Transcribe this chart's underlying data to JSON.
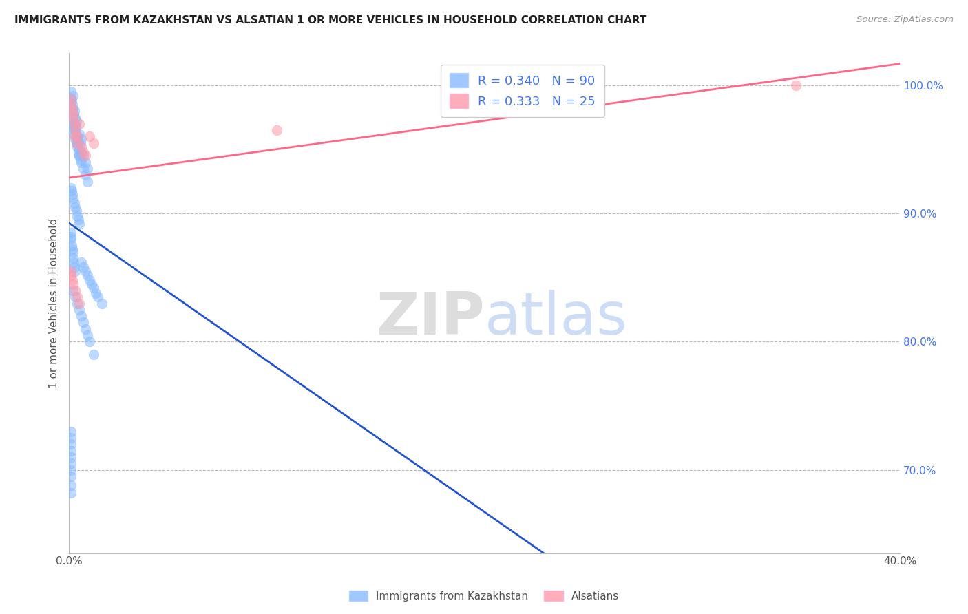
{
  "title": "IMMIGRANTS FROM KAZAKHSTAN VS ALSATIAN 1 OR MORE VEHICLES IN HOUSEHOLD CORRELATION CHART",
  "source": "Source: ZipAtlas.com",
  "ylabel": "1 or more Vehicles in Household",
  "watermark_zip": "ZIP",
  "watermark_atlas": "atlas",
  "legend1_label": "Immigrants from Kazakhstan",
  "legend2_label": "Alsatians",
  "R1": 0.34,
  "N1": 90,
  "R2": 0.333,
  "N2": 25,
  "xlim": [
    0.0,
    0.4
  ],
  "ylim": [
    0.635,
    1.025
  ],
  "color_blue": "#88BBFF",
  "color_pink": "#FF99AA",
  "trend_blue": "#2255CC",
  "trend_pink": "#FF6688",
  "grid_color": "#BBBBBB",
  "axis_color": "#BBBBBB",
  "right_tick_color": "#4477EE",
  "scatter_alpha": 0.55,
  "scatter_size": 110,
  "kaz_x": [
    0.0008,
    0.001,
    0.0012,
    0.0015,
    0.0018,
    0.002,
    0.002,
    0.0022,
    0.0025,
    0.003,
    0.003,
    0.003,
    0.0032,
    0.0035,
    0.004,
    0.004,
    0.0042,
    0.005,
    0.005,
    0.005,
    0.0055,
    0.006,
    0.006,
    0.006,
    0.007,
    0.007,
    0.008,
    0.008,
    0.009,
    0.009,
    0.001,
    0.0015,
    0.002,
    0.0025,
    0.003,
    0.0035,
    0.004,
    0.0045,
    0.005,
    0.0055,
    0.001,
    0.0012,
    0.0015,
    0.002,
    0.0025,
    0.003,
    0.0035,
    0.004,
    0.0045,
    0.005,
    0.001,
    0.0008,
    0.001,
    0.0012,
    0.0015,
    0.0018,
    0.002,
    0.0022,
    0.0025,
    0.003,
    0.006,
    0.007,
    0.008,
    0.009,
    0.01,
    0.011,
    0.012,
    0.013,
    0.014,
    0.016,
    0.001,
    0.001,
    0.001,
    0.001,
    0.001,
    0.001,
    0.001,
    0.001,
    0.001,
    0.001,
    0.002,
    0.003,
    0.004,
    0.005,
    0.006,
    0.007,
    0.008,
    0.009,
    0.01,
    0.012
  ],
  "kaz_y": [
    0.99,
    0.995,
    0.988,
    0.985,
    0.992,
    0.982,
    0.975,
    0.978,
    0.98,
    0.97,
    0.975,
    0.965,
    0.968,
    0.972,
    0.96,
    0.955,
    0.958,
    0.95,
    0.945,
    0.962,
    0.955,
    0.948,
    0.94,
    0.958,
    0.935,
    0.945,
    0.93,
    0.94,
    0.925,
    0.935,
    0.97,
    0.968,
    0.965,
    0.962,
    0.958,
    0.955,
    0.952,
    0.948,
    0.945,
    0.942,
    0.92,
    0.918,
    0.915,
    0.912,
    0.908,
    0.905,
    0.902,
    0.898,
    0.895,
    0.892,
    0.885,
    0.882,
    0.88,
    0.875,
    0.872,
    0.87,
    0.865,
    0.862,
    0.858,
    0.855,
    0.862,
    0.858,
    0.855,
    0.852,
    0.848,
    0.845,
    0.842,
    0.838,
    0.835,
    0.83,
    0.7,
    0.695,
    0.688,
    0.705,
    0.71,
    0.682,
    0.72,
    0.715,
    0.725,
    0.73,
    0.84,
    0.835,
    0.83,
    0.825,
    0.82,
    0.815,
    0.81,
    0.805,
    0.8,
    0.79
  ],
  "als_x": [
    0.0008,
    0.001,
    0.0015,
    0.002,
    0.002,
    0.0025,
    0.003,
    0.003,
    0.004,
    0.004,
    0.005,
    0.006,
    0.007,
    0.008,
    0.01,
    0.012,
    0.0008,
    0.001,
    0.0015,
    0.002,
    0.003,
    0.004,
    0.005,
    0.1,
    0.35
  ],
  "als_y": [
    0.99,
    0.985,
    0.982,
    0.978,
    0.975,
    0.97,
    0.965,
    0.96,
    0.955,
    0.96,
    0.97,
    0.952,
    0.948,
    0.945,
    0.96,
    0.955,
    0.855,
    0.852,
    0.848,
    0.845,
    0.84,
    0.835,
    0.83,
    0.965,
    1.0
  ]
}
